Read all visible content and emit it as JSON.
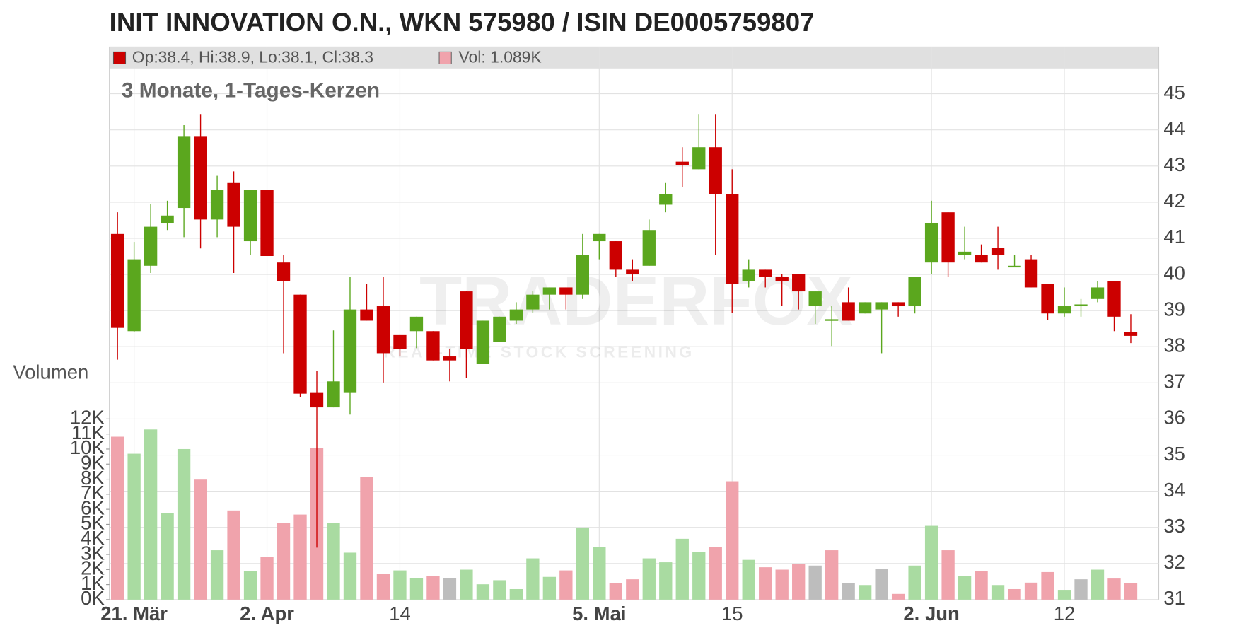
{
  "chart_data": {
    "type": "candlestick",
    "title": "INIT INNOVATION O.N., WKN 575980 / ISIN DE0005759807",
    "subtitle": "3 Monate, 1-Tages-Kerzen",
    "info_ohlc": "Op:38.4, Hi:38.9, Lo:38.1, Cl:38.3",
    "info_volume": "Vol: 1.089K",
    "watermark": "TRADERFOX",
    "watermark_sub": "REAL-TIME STOCK SCREENING",
    "categories": [
      null,
      "21. Mär",
      null,
      null,
      null,
      null,
      null,
      null,
      null,
      "2. Apr",
      null,
      null,
      null,
      null,
      null,
      null,
      null,
      "14",
      null,
      null,
      null,
      null,
      null,
      null,
      null,
      null,
      null,
      null,
      null,
      "5. Mai",
      null,
      null,
      null,
      null,
      null,
      null,
      null,
      "15",
      null,
      null,
      null,
      null,
      null,
      null,
      null,
      null,
      null,
      null,
      null,
      "2. Jun",
      null,
      null,
      null,
      null,
      null,
      null,
      null,
      "12",
      null,
      null,
      null,
      null
    ],
    "open": [
      41.12,
      38.43,
      40.24,
      41.41,
      41.84,
      43.81,
      41.52,
      42.53,
      40.92,
      42.33,
      40.33,
      39.44,
      36.72,
      36.32,
      36.72,
      39.03,
      39.12,
      38.34,
      38.43,
      38.43,
      37.73,
      39.53,
      37.53,
      38.13,
      38.72,
      39.03,
      39.44,
      39.64,
      39.44,
      40.92,
      40.92,
      40.13,
      40.24,
      41.93,
      43.12,
      42.91,
      43.52,
      42.22,
      39.82,
      40.13,
      39.93,
      40.02,
      39.12,
      38.72,
      39.23,
      38.92,
      39.03,
      39.23,
      39.12,
      40.33,
      41.72,
      40.54,
      40.54,
      40.74,
      40.22,
      40.42,
      39.73,
      38.92,
      39.12,
      39.32,
      39.82,
      38.4
    ],
    "high": [
      41.72,
      40.9,
      41.95,
      42.04,
      44.13,
      44.44,
      42.73,
      42.85,
      42.33,
      42.33,
      40.54,
      39.44,
      37.33,
      38.45,
      39.93,
      39.73,
      39.93,
      38.34,
      38.83,
      38.43,
      37.93,
      39.53,
      38.72,
      38.83,
      39.23,
      39.53,
      39.64,
      39.64,
      41.12,
      41.12,
      40.92,
      40.42,
      41.52,
      42.53,
      43.52,
      44.44,
      44.44,
      42.91,
      40.42,
      40.13,
      40.02,
      40.02,
      39.53,
      39.12,
      39.64,
      39.23,
      39.23,
      39.23,
      39.93,
      42.04,
      41.72,
      41.32,
      40.83,
      41.32,
      40.54,
      40.54,
      39.73,
      39.64,
      39.32,
      39.82,
      39.82,
      38.9
    ],
    "low": [
      37.64,
      38.4,
      40.04,
      41.23,
      41.03,
      40.72,
      41.03,
      40.04,
      40.54,
      40.51,
      37.82,
      36.61,
      32.44,
      36.32,
      36.12,
      38.72,
      37.01,
      37.73,
      37.96,
      37.62,
      37.04,
      37.13,
      37.53,
      38.13,
      38.63,
      38.94,
      39.03,
      39.03,
      39.32,
      40.42,
      39.93,
      39.82,
      40.24,
      41.72,
      42.42,
      42.91,
      40.54,
      38.94,
      39.64,
      39.64,
      39.12,
      39.03,
      38.63,
      38.02,
      38.72,
      38.92,
      37.82,
      38.83,
      38.92,
      40.02,
      39.93,
      40.42,
      40.33,
      40.13,
      40.22,
      39.64,
      38.74,
      38.83,
      38.83,
      39.23,
      38.43,
      38.1
    ],
    "close": [
      38.52,
      40.42,
      41.32,
      41.63,
      43.81,
      41.52,
      42.33,
      41.32,
      42.33,
      40.51,
      39.82,
      36.7,
      36.32,
      37.04,
      39.03,
      38.72,
      37.82,
      37.93,
      38.83,
      37.62,
      37.62,
      37.93,
      38.72,
      38.83,
      39.03,
      39.44,
      39.64,
      39.44,
      40.54,
      41.12,
      40.13,
      40.02,
      41.23,
      42.22,
      43.03,
      43.52,
      42.22,
      39.73,
      40.13,
      39.93,
      39.82,
      39.53,
      39.53,
      38.76,
      38.72,
      39.23,
      39.23,
      39.12,
      39.93,
      41.43,
      40.33,
      40.63,
      40.33,
      40.54,
      40.24,
      39.64,
      38.92,
      39.12,
      39.17,
      39.64,
      38.83,
      38.3
    ],
    "up_color": "#5ba71e",
    "down_color": "#cc0000",
    "ylim": [
      31,
      45.7
    ],
    "yticks": [
      31,
      32,
      33,
      34,
      35,
      36,
      37,
      38,
      39,
      40,
      41,
      42,
      43,
      44,
      45
    ],
    "volume": {
      "name": "Volumen",
      "values": [
        10.82,
        9.69,
        11.3,
        5.76,
        10.0,
        7.97,
        3.28,
        5.92,
        1.88,
        2.85,
        5.11,
        5.65,
        10.06,
        5.11,
        3.12,
        8.13,
        1.72,
        1.94,
        1.45,
        1.56,
        1.45,
        1.99,
        1.02,
        1.29,
        0.7,
        2.74,
        1.51,
        1.94,
        4.79,
        3.5,
        1.08,
        1.35,
        2.74,
        2.48,
        4.04,
        3.18,
        3.5,
        7.86,
        2.64,
        2.15,
        1.99,
        2.37,
        2.26,
        3.28,
        1.08,
        0.97,
        2.05,
        0.38,
        2.26,
        4.9,
        3.28,
        1.56,
        1.88,
        0.97,
        0.7,
        1.13,
        1.83,
        0.65,
        1.35,
        1.99,
        1.4,
        1.089
      ],
      "colors": [
        "#f0a3ac",
        "#a9dba1",
        "#a9dba1",
        "#a9dba1",
        "#a9dba1",
        "#f0a3ac",
        "#a9dba1",
        "#f0a3ac",
        "#a9dba1",
        "#f0a3ac",
        "#f0a3ac",
        "#f0a3ac",
        "#f0a3ac",
        "#a9dba1",
        "#a9dba1",
        "#f0a3ac",
        "#f0a3ac",
        "#a9dba1",
        "#a9dba1",
        "#f0a3ac",
        "#bdbdbd",
        "#a9dba1",
        "#a9dba1",
        "#a9dba1",
        "#a9dba1",
        "#a9dba1",
        "#a9dba1",
        "#f0a3ac",
        "#a9dba1",
        "#a9dba1",
        "#f0a3ac",
        "#f0a3ac",
        "#a9dba1",
        "#a9dba1",
        "#a9dba1",
        "#a9dba1",
        "#f0a3ac",
        "#f0a3ac",
        "#a9dba1",
        "#f0a3ac",
        "#f0a3ac",
        "#f0a3ac",
        "#bdbdbd",
        "#f0a3ac",
        "#bdbdbd",
        "#a9dba1",
        "#bdbdbd",
        "#f0a3ac",
        "#a9dba1",
        "#a9dba1",
        "#f0a3ac",
        "#a9dba1",
        "#f0a3ac",
        "#a9dba1",
        "#f0a3ac",
        "#f0a3ac",
        "#f0a3ac",
        "#a9dba1",
        "#bdbdbd",
        "#a9dba1",
        "#f0a3ac",
        "#f0a3ac"
      ],
      "ylim": [
        0,
        12
      ],
      "yticks": [
        {
          "value": 0,
          "label": "0K"
        },
        {
          "value": 1,
          "label": "1K"
        },
        {
          "value": 2,
          "label": "2K"
        },
        {
          "value": 3,
          "label": "3K"
        },
        {
          "value": 4,
          "label": "4K"
        },
        {
          "value": 5,
          "label": "5K"
        },
        {
          "value": 6,
          "label": "6K"
        },
        {
          "value": 7,
          "label": "7K"
        },
        {
          "value": 8,
          "label": "8K"
        },
        {
          "value": 9,
          "label": "9K"
        },
        {
          "value": 10,
          "label": "10K"
        },
        {
          "value": 11,
          "label": "11K"
        },
        {
          "value": 12,
          "label": "12K"
        }
      ]
    },
    "grid": true
  }
}
